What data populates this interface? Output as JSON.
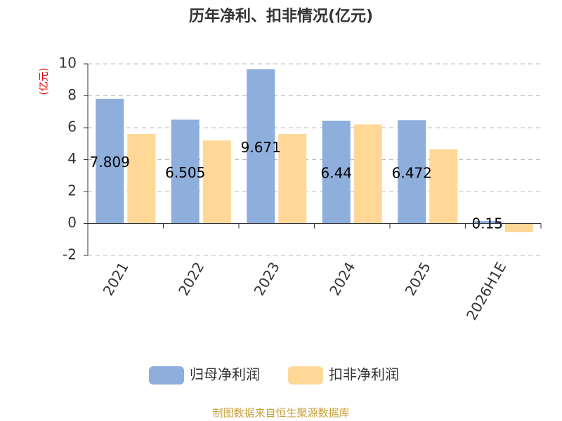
{
  "chart_data": {
    "type": "bar",
    "title": "历年净利、扣非情况(亿元)",
    "y_label": "(亿元)",
    "categories": [
      "2021",
      "2022",
      "2023",
      "2024",
      "2025",
      "2026H1E"
    ],
    "series": [
      {
        "name": "归母净利润",
        "color": "#8eaedc",
        "values": [
          7.809,
          6.505,
          9.671,
          6.44,
          6.472,
          0.15
        ]
      },
      {
        "name": "扣非净利润",
        "color": "#ffd898",
        "values": [
          5.6,
          5.2,
          5.6,
          6.2,
          4.65,
          -0.55
        ]
      }
    ],
    "ylim": [
      -2,
      10
    ],
    "yticks": [
      -2,
      0,
      2,
      4,
      6,
      8,
      10
    ],
    "grid": true,
    "legend": "bottom",
    "source": "制图数据来自恒生聚源数据库"
  }
}
